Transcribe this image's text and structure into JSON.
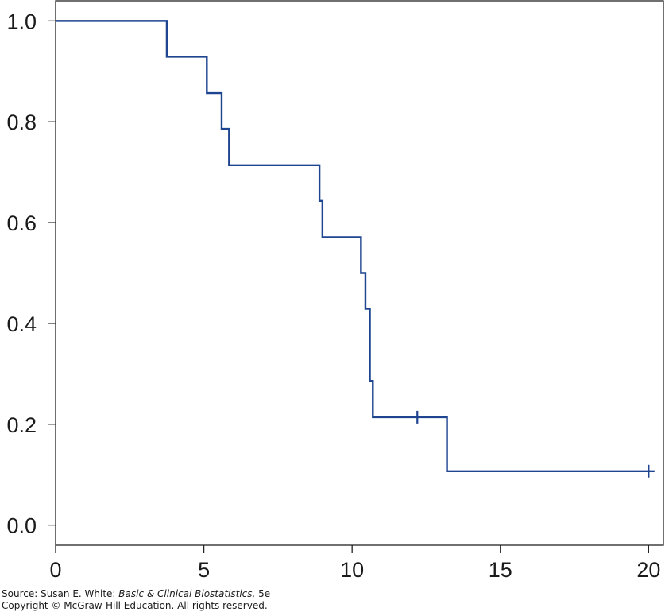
{
  "chart_data": {
    "type": "line",
    "title": "",
    "xlabel": "",
    "ylabel": "",
    "xlim": [
      0,
      20.5
    ],
    "ylim": [
      -0.04,
      1.04
    ],
    "xticks": [
      0,
      5,
      10,
      15,
      20
    ],
    "yticks": [
      0.0,
      0.2,
      0.4,
      0.6,
      0.8,
      1.0
    ],
    "xtick_labels": [
      "0",
      "5",
      "10",
      "15",
      "20"
    ],
    "ytick_labels": [
      "0.0",
      "0.2",
      "0.4",
      "0.6",
      "0.8",
      "1.0"
    ],
    "grid": false,
    "line_color": "#1f4590",
    "series": [
      {
        "step": "post",
        "x": [
          0,
          3.75,
          5.1,
          5.6,
          5.85,
          8.9,
          9.0,
          10.3,
          10.45,
          10.6,
          10.7,
          13.2,
          20.2
        ],
        "y": [
          1.0,
          0.929,
          0.857,
          0.786,
          0.714,
          0.643,
          0.571,
          0.5,
          0.429,
          0.286,
          0.214,
          0.107,
          0.107
        ]
      }
    ],
    "censored": [
      {
        "x": 12.2,
        "y": 0.214
      },
      {
        "x": 20.0,
        "y": 0.107
      }
    ]
  },
  "source": {
    "prefix": "Source: Susan E. White: ",
    "book": "Basic & Clinical Biostatistics,",
    "edition": " 5e",
    "copyright": "Copyright © McGraw-Hill Education. All rights reserved."
  }
}
